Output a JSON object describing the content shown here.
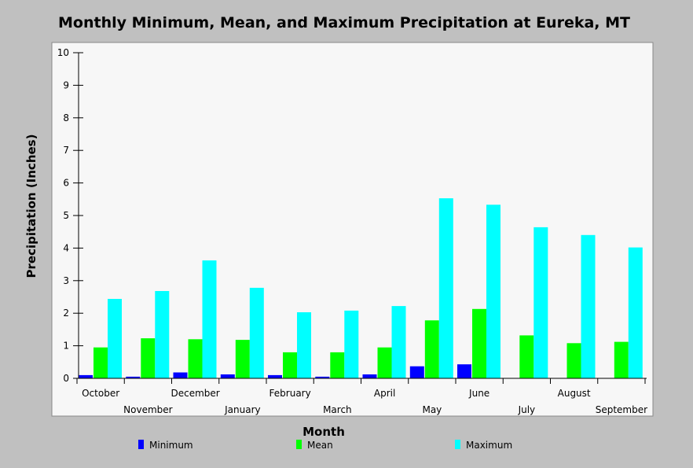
{
  "chart_data": {
    "type": "bar",
    "title": "Monthly Minimum, Mean, and Maximum Precipitation at Eureka, MT",
    "xlabel": "Month",
    "ylabel": "Precipitation (Inches)",
    "ylim": [
      0,
      10
    ],
    "yticks": [
      "0",
      "1",
      "2",
      "3",
      "4",
      "5",
      "6",
      "7",
      "8",
      "9",
      "10"
    ],
    "categories": [
      "October",
      "November",
      "December",
      "January",
      "February",
      "March",
      "April",
      "May",
      "June",
      "July",
      "August",
      "September"
    ],
    "series": [
      {
        "name": "Minimum",
        "color": "#0000ff",
        "values": [
          0.1,
          0.05,
          0.18,
          0.12,
          0.1,
          0.05,
          0.12,
          0.37,
          0.43,
          0.0,
          0.0,
          0.0
        ]
      },
      {
        "name": "Mean",
        "color": "#00ff00",
        "values": [
          0.95,
          1.23,
          1.2,
          1.18,
          0.8,
          0.8,
          0.95,
          1.78,
          2.13,
          1.32,
          1.08,
          1.12
        ]
      },
      {
        "name": "Maximum",
        "color": "#00ffff",
        "values": [
          2.44,
          2.68,
          3.62,
          2.78,
          2.03,
          2.08,
          2.22,
          5.53,
          5.33,
          4.64,
          4.4,
          4.02
        ]
      }
    ],
    "grid": false,
    "legend_position": "bottom"
  }
}
